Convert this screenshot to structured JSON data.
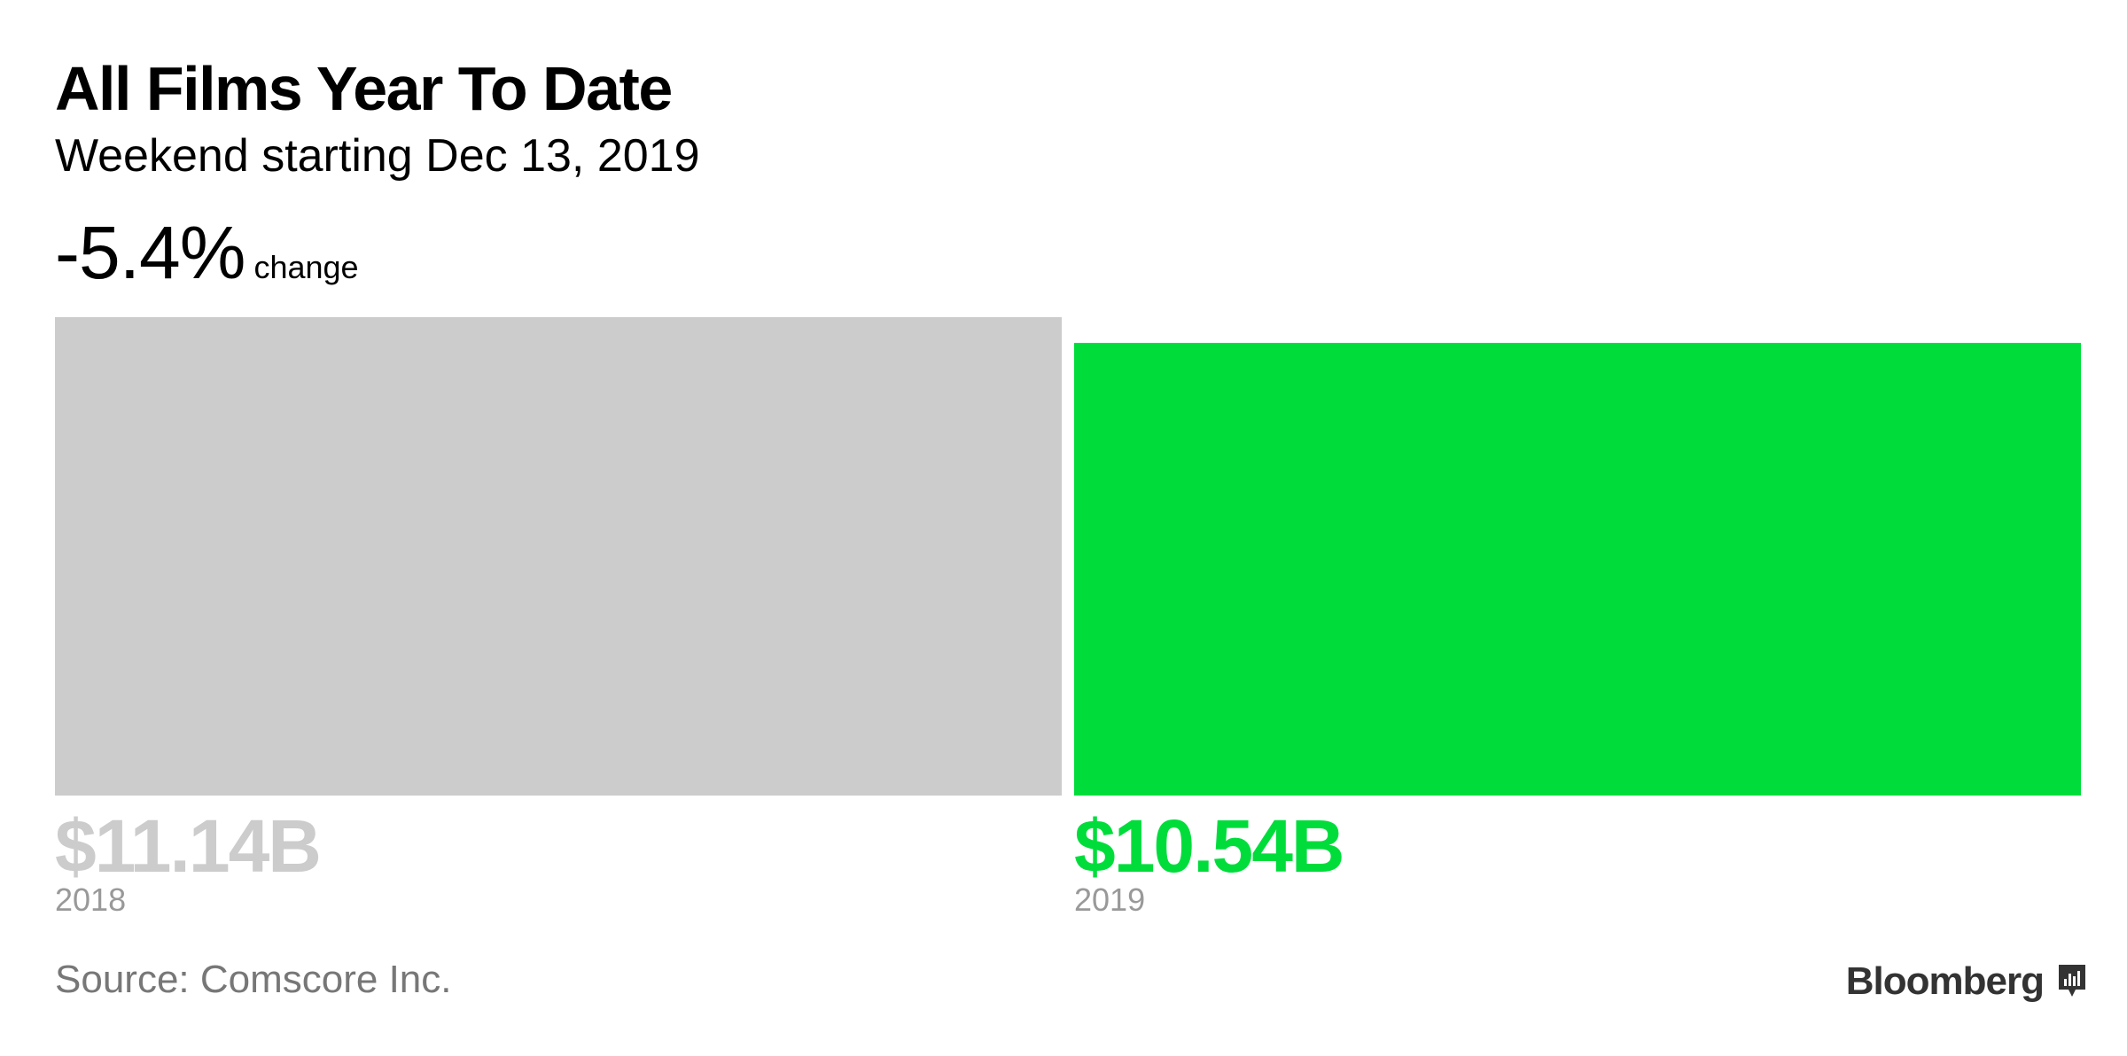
{
  "chart_data": {
    "type": "bar",
    "title": "All Films Year To Date",
    "subtitle": "Weekend starting Dec 13, 2019",
    "change": {
      "value": "-5.4%",
      "label": "change"
    },
    "categories": [
      "2018",
      "2019"
    ],
    "values": [
      11.14,
      10.54
    ],
    "value_labels": [
      "$11.14B",
      "$10.54B"
    ],
    "colors": [
      "#cccccc",
      "#00dd3b"
    ],
    "ylim": [
      0,
      11.14
    ],
    "grid": false,
    "legend": "none"
  },
  "footer": {
    "source": "Source: Comscore Inc.",
    "brand": "Bloomberg",
    "brand_icon": "bloomberg-chart-icon"
  }
}
